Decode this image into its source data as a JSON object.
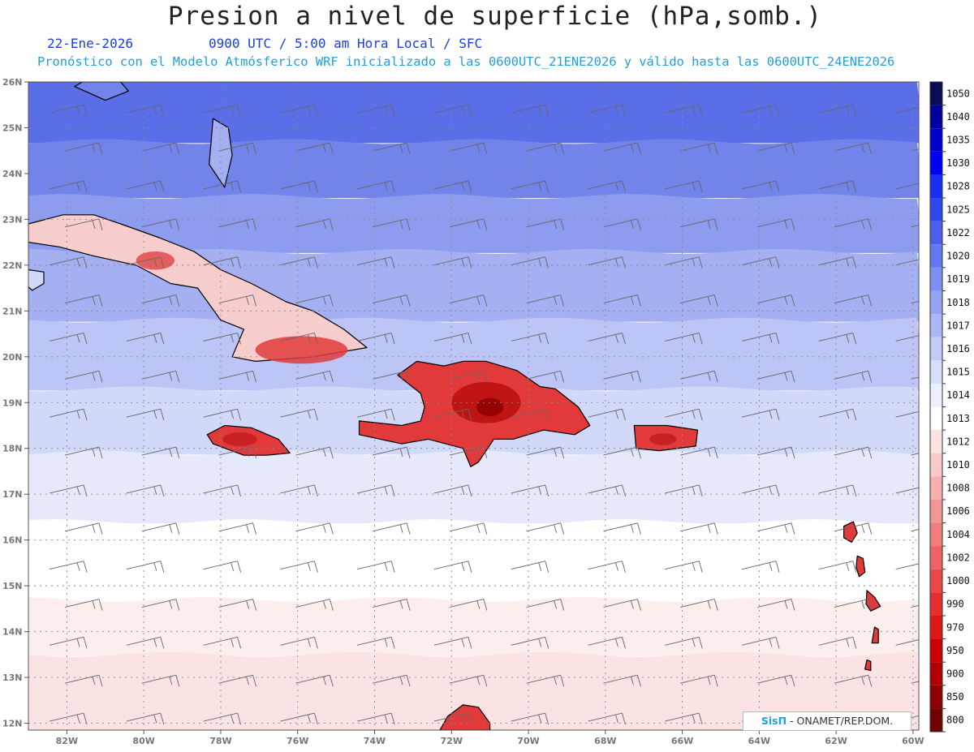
{
  "title": "Presion a nivel de superficie (hPa,somb.)",
  "date": "22-Ene-2026",
  "time_info": "0900 UTC / 5:00 am Hora Local / SFC",
  "model_info": "Pronóstico con el Modelo Atmósferico WRF inicializado a las 0600UTC_21ENE2026 y válido hasta las  0600UTC_24ENE2026",
  "credit": {
    "brand": "SisΠ",
    "text": " - ONAMET/REP.DOM."
  },
  "colorbar": {
    "labels": [
      "1050",
      "1040",
      "1035",
      "1030",
      "1028",
      "1025",
      "1022",
      "1020",
      "1019",
      "1018",
      "1017",
      "1016",
      "1015",
      "1014",
      "1013",
      "1012",
      "1010",
      "1008",
      "1006",
      "1004",
      "1002",
      "1000",
      "990",
      "970",
      "950",
      "900",
      "850",
      "800"
    ],
    "colors": [
      "#0a0a55",
      "#00009c",
      "#0000cc",
      "#0000f2",
      "#1a2ff5",
      "#2e48ee",
      "#4a60ec",
      "#6478ee",
      "#7d8ff0",
      "#95a3f2",
      "#abb6f4",
      "#c2caf7",
      "#d8ddf9",
      "#eceffd",
      "#ffffff",
      "#fde3e3",
      "#f9c9c9",
      "#f6b0b0",
      "#f39696",
      "#f07c7c",
      "#ed6262",
      "#ea4848",
      "#e52e2e",
      "#de1717",
      "#cc0000",
      "#b00000",
      "#900000",
      "#700000"
    ]
  },
  "axes": {
    "lon_labels": [
      "82W",
      "80W",
      "78W",
      "76W",
      "74W",
      "72W",
      "70W",
      "68W",
      "66W",
      "64W",
      "62W",
      "60W"
    ],
    "lat_labels": [
      "26N",
      "25N",
      "24N",
      "23N",
      "22N",
      "21N",
      "20N",
      "19N",
      "18N",
      "17N",
      "16N",
      "15N",
      "14N",
      "13N",
      "12N"
    ]
  },
  "pressure_bands": [
    {
      "lat_top": 26.0,
      "lat_bottom": 24.7,
      "color": "#5a6ee8"
    },
    {
      "lat_top": 24.7,
      "lat_bottom": 23.5,
      "color": "#7283ea"
    },
    {
      "lat_top": 23.5,
      "lat_bottom": 22.3,
      "color": "#8e9cef"
    },
    {
      "lat_top": 22.3,
      "lat_bottom": 20.8,
      "color": "#a5b0f2"
    },
    {
      "lat_top": 20.8,
      "lat_bottom": 19.3,
      "color": "#bcc5f5"
    },
    {
      "lat_top": 19.3,
      "lat_bottom": 17.9,
      "color": "#d2d8f8"
    },
    {
      "lat_top": 17.9,
      "lat_bottom": 16.4,
      "color": "#e6e9fb"
    },
    {
      "lat_top": 16.4,
      "lat_bottom": 14.7,
      "color": "#ffffff"
    },
    {
      "lat_top": 14.7,
      "lat_bottom": 13.5,
      "color": "#fdeeee"
    },
    {
      "lat_top": 13.5,
      "lat_bottom": 11.85,
      "color": "#fbe3e3"
    }
  ],
  "land": [
    {
      "name": "Cuba",
      "fill": "#f7cccc",
      "points": [
        [
          -83,
          22.9
        ],
        [
          -82.1,
          23.1
        ],
        [
          -81.3,
          23.1
        ],
        [
          -80.6,
          22.9
        ],
        [
          -79.6,
          22.6
        ],
        [
          -78.7,
          22.3
        ],
        [
          -78.0,
          21.9
        ],
        [
          -77.2,
          21.6
        ],
        [
          -76.3,
          21.2
        ],
        [
          -75.6,
          21.0
        ],
        [
          -74.8,
          20.6
        ],
        [
          -74.2,
          20.2
        ],
        [
          -75.6,
          20.0
        ],
        [
          -77.1,
          19.9
        ],
        [
          -77.7,
          20.0
        ],
        [
          -77.4,
          20.6
        ],
        [
          -78.0,
          20.8
        ],
        [
          -78.6,
          21.5
        ],
        [
          -79.3,
          21.6
        ],
        [
          -80.2,
          22.0
        ],
        [
          -81.3,
          22.2
        ],
        [
          -82.2,
          22.4
        ],
        [
          -83.0,
          22.5
        ]
      ]
    },
    {
      "name": "Hispaniola",
      "fill": "#e23a3a",
      "points": [
        [
          -72.9,
          19.9
        ],
        [
          -72.2,
          19.8
        ],
        [
          -71.7,
          19.9
        ],
        [
          -71.1,
          19.9
        ],
        [
          -70.3,
          19.7
        ],
        [
          -69.7,
          19.35
        ],
        [
          -69.3,
          19.3
        ],
        [
          -68.7,
          18.9
        ],
        [
          -68.4,
          18.5
        ],
        [
          -68.8,
          18.3
        ],
        [
          -69.6,
          18.4
        ],
        [
          -70.4,
          18.2
        ],
        [
          -70.9,
          18.2
        ],
        [
          -71.3,
          17.7
        ],
        [
          -71.5,
          17.6
        ],
        [
          -71.7,
          18.0
        ],
        [
          -72.6,
          18.2
        ],
        [
          -73.3,
          18.1
        ],
        [
          -74.4,
          18.3
        ],
        [
          -74.4,
          18.6
        ],
        [
          -73.3,
          18.5
        ],
        [
          -72.8,
          18.6
        ],
        [
          -72.7,
          18.9
        ],
        [
          -72.8,
          19.2
        ],
        [
          -73.4,
          19.6
        ]
      ]
    },
    {
      "name": "Jamaica",
      "fill": "#e23a3a",
      "points": [
        [
          -78.35,
          18.3
        ],
        [
          -77.9,
          18.5
        ],
        [
          -77.2,
          18.45
        ],
        [
          -76.5,
          18.2
        ],
        [
          -76.2,
          17.9
        ],
        [
          -76.8,
          17.85
        ],
        [
          -77.4,
          17.85
        ],
        [
          -78.2,
          18.1
        ]
      ]
    },
    {
      "name": "Puerto Rico",
      "fill": "#e23a3a",
      "points": [
        [
          -67.25,
          18.5
        ],
        [
          -66.4,
          18.5
        ],
        [
          -65.6,
          18.4
        ],
        [
          -65.65,
          18.05
        ],
        [
          -66.6,
          17.95
        ],
        [
          -67.2,
          18.0
        ]
      ]
    },
    {
      "name": "Guadeloupe",
      "fill": "#e23a3a",
      "points": [
        [
          -61.8,
          16.3
        ],
        [
          -61.55,
          16.4
        ],
        [
          -61.45,
          16.15
        ],
        [
          -61.6,
          15.95
        ],
        [
          -61.8,
          16.05
        ]
      ]
    },
    {
      "name": "Dominica",
      "fill": "#e23a3a",
      "points": [
        [
          -61.45,
          15.65
        ],
        [
          -61.3,
          15.6
        ],
        [
          -61.25,
          15.3
        ],
        [
          -61.4,
          15.2
        ],
        [
          -61.48,
          15.4
        ]
      ]
    },
    {
      "name": "Martinique",
      "fill": "#e23a3a",
      "points": [
        [
          -61.2,
          14.9
        ],
        [
          -61.0,
          14.75
        ],
        [
          -60.85,
          14.55
        ],
        [
          -61.1,
          14.45
        ],
        [
          -61.22,
          14.6
        ]
      ]
    },
    {
      "name": "St Lucia",
      "fill": "#e23a3a",
      "points": [
        [
          -61.0,
          14.1
        ],
        [
          -60.9,
          14.05
        ],
        [
          -60.9,
          13.75
        ],
        [
          -61.07,
          13.75
        ]
      ]
    },
    {
      "name": "St Vincent",
      "fill": "#e23a3a",
      "points": [
        [
          -61.2,
          13.38
        ],
        [
          -61.1,
          13.35
        ],
        [
          -61.1,
          13.15
        ],
        [
          -61.25,
          13.18
        ]
      ]
    },
    {
      "name": "South America",
      "fill": "#e23a3a",
      "points": [
        [
          -72.3,
          11.85
        ],
        [
          -72.1,
          12.15
        ],
        [
          -71.7,
          12.4
        ],
        [
          -71.3,
          12.35
        ],
        [
          -71.0,
          12.0
        ],
        [
          -71.0,
          11.85
        ]
      ]
    },
    {
      "name": "Andros",
      "fill": "#a5b0f2",
      "points": [
        [
          -78.2,
          25.2
        ],
        [
          -77.8,
          25.0
        ],
        [
          -77.7,
          24.4
        ],
        [
          -77.9,
          23.7
        ],
        [
          -78.3,
          24.2
        ]
      ]
    },
    {
      "name": "Florida Keys",
      "fill": "#7283ea",
      "points": [
        [
          -81.8,
          25.9
        ],
        [
          -81.0,
          25.6
        ],
        [
          -80.4,
          25.8
        ],
        [
          -80.6,
          26.0
        ],
        [
          -81.6,
          26.0
        ]
      ]
    },
    {
      "name": "Isla de la Juventud",
      "fill": "#d2d8f8",
      "points": [
        [
          -83.0,
          21.9
        ],
        [
          -82.6,
          21.85
        ],
        [
          -82.6,
          21.6
        ],
        [
          -82.9,
          21.45
        ],
        [
          -83.1,
          21.6
        ]
      ]
    }
  ],
  "highlights": [
    {
      "name": "Hispaniola central high",
      "lon": -71.1,
      "lat": 19.0,
      "rx": 0.9,
      "ry": 0.45,
      "color": "#b80e0e"
    },
    {
      "name": "Cordillera Central core",
      "lon": -71.0,
      "lat": 18.9,
      "rx": 0.35,
      "ry": 0.2,
      "color": "#8e0000"
    },
    {
      "name": "Cuba east",
      "lon": -75.9,
      "lat": 20.15,
      "rx": 1.2,
      "ry": 0.3,
      "color": "#e23a3a"
    },
    {
      "name": "Cuba west",
      "lon": -79.7,
      "lat": 22.1,
      "rx": 0.5,
      "ry": 0.2,
      "color": "#e24a4a"
    },
    {
      "name": "Jamaica core",
      "lon": -77.5,
      "lat": 18.2,
      "rx": 0.45,
      "ry": 0.15,
      "color": "#c41d1d"
    },
    {
      "name": "Puerto Rico core",
      "lon": -66.5,
      "lat": 18.2,
      "rx": 0.35,
      "ry": 0.13,
      "color": "#c41d1d"
    }
  ],
  "wind_barbs": {
    "lon_start": -83.0,
    "lon_step": 2.0,
    "lat_start": 25.5,
    "lat_step": -0.83,
    "rows": 17,
    "cols": 12
  }
}
